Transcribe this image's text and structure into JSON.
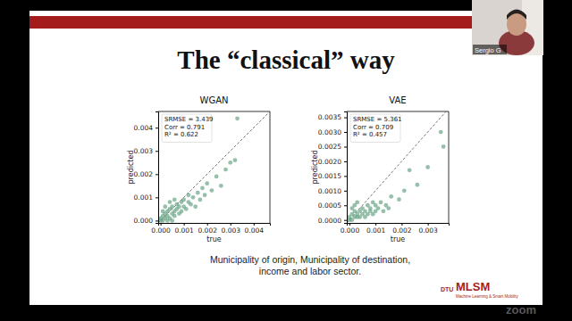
{
  "slide": {
    "title": "The “classical” way",
    "caption": [
      "Municipality of origin, Municipality of destination,",
      "income and labor sector."
    ],
    "logo": {
      "org": "DTU",
      "name": "MLSM",
      "tagline": "Machine Learning & Smart Mobility"
    },
    "participant": "Sergio G",
    "watermark": "zoom"
  },
  "chart_data": [
    {
      "type": "scatter",
      "title": "WGAN",
      "x_label": "true",
      "y_label": "predicted",
      "annotations": [
        "SRMSE = 3.439",
        "Corr = 0.791",
        "R² = 0.622"
      ],
      "color": "#5f9e7e",
      "marker": "o",
      "x": [
        0.0,
        0.0001,
        0.0001,
        0.0002,
        0.0002,
        0.0003,
        0.0003,
        0.0004,
        0.0004,
        0.0005,
        0.0005,
        0.0006,
        0.0006,
        0.0007,
        0.0007,
        0.0008,
        0.0008,
        0.0009,
        0.0009,
        0.001,
        0.001,
        0.0011,
        0.0012,
        0.0012,
        0.0013,
        0.0014,
        0.0015,
        0.0016,
        0.0017,
        0.0018,
        0.0019,
        0.002,
        0.0022,
        0.0024,
        0.0026,
        0.0028,
        0.003,
        0.0032,
        0.0033,
        0.0,
        0.0001,
        0.0002,
        0.0003,
        0.0005,
        0.0004,
        0.0006
      ],
      "values": [
        0.0001,
        0.0,
        0.0002,
        0.0001,
        0.0003,
        0.0002,
        0.0004,
        0.0001,
        0.0005,
        0.0003,
        0.0006,
        0.0002,
        0.0004,
        0.0005,
        0.0007,
        0.0003,
        0.0006,
        0.0004,
        0.0008,
        0.0006,
        0.0009,
        0.0005,
        0.0008,
        0.0011,
        0.0007,
        0.001,
        0.0006,
        0.0012,
        0.0009,
        0.0014,
        0.0011,
        0.0016,
        0.0013,
        0.0019,
        0.0015,
        0.0022,
        0.0025,
        0.0026,
        0.0044,
        0.0,
        0.0004,
        0.0006,
        0.0,
        0.0,
        0.0008,
        0.0009
      ],
      "xlim": [
        -0.0001,
        0.0047
      ],
      "ylim": [
        -0.0001,
        0.0047
      ],
      "xticks": [
        {
          "value": 0,
          "label": "0.000"
        },
        {
          "value": 0.001,
          "label": "0.001"
        },
        {
          "value": 0.002,
          "label": "0.002"
        },
        {
          "value": 0.003,
          "label": "0.003"
        },
        {
          "value": 0.004,
          "label": "0.004"
        }
      ],
      "yticks": [
        {
          "value": 0,
          "label": "0.000"
        },
        {
          "value": 0.001,
          "label": "0.001"
        },
        {
          "value": 0.002,
          "label": "0.002"
        },
        {
          "value": 0.003,
          "label": "0.003"
        },
        {
          "value": 0.004,
          "label": "0.004"
        }
      ]
    },
    {
      "type": "scatter",
      "title": "VAE",
      "x_label": "true",
      "y_label": "predicted",
      "annotations": [
        "SRMSE = 5.361",
        "Corr = 0.709",
        "R² = 0.457"
      ],
      "color": "#5f9e7e",
      "marker": "o",
      "x": [
        0.0,
        0.0,
        0.0001,
        0.0001,
        0.0002,
        0.0002,
        0.0003,
        0.0003,
        0.0004,
        0.0004,
        0.0005,
        0.0005,
        0.0006,
        0.0006,
        0.0007,
        0.0007,
        0.0008,
        0.0008,
        0.0009,
        0.0009,
        0.001,
        0.001,
        0.0011,
        0.0012,
        0.0013,
        0.0014,
        0.0015,
        0.0016,
        0.0019,
        0.0021,
        0.0023,
        0.0026,
        0.003,
        0.0035,
        0.0036,
        0.0002,
        0.0003,
        0.0001
      ],
      "values": [
        0.0,
        0.0001,
        0.0,
        0.0002,
        0.0001,
        0.0003,
        0.0001,
        0.0002,
        0.0003,
        0.0001,
        0.0002,
        0.0004,
        0.0001,
        0.0003,
        0.0002,
        0.0005,
        0.0003,
        0.0004,
        0.0002,
        0.0006,
        0.0003,
        0.0005,
        0.0004,
        0.0006,
        0.0003,
        0.0005,
        0.0004,
        0.0008,
        0.0007,
        0.001,
        0.0017,
        0.0012,
        0.0018,
        0.003,
        0.0025,
        0.0005,
        0.0006,
        0.0004
      ],
      "xlim": [
        -0.0001,
        0.0038
      ],
      "ylim": [
        -0.0001,
        0.0037
      ],
      "xticks": [
        {
          "value": 0,
          "label": "0.000"
        },
        {
          "value": 0.001,
          "label": "0.001"
        },
        {
          "value": 0.002,
          "label": "0.002"
        },
        {
          "value": 0.003,
          "label": "0.003"
        }
      ],
      "yticks": [
        {
          "value": 0,
          "label": "0.0000"
        },
        {
          "value": 0.0005,
          "label": "0.0005"
        },
        {
          "value": 0.001,
          "label": "0.0010"
        },
        {
          "value": 0.0015,
          "label": "0.0015"
        },
        {
          "value": 0.002,
          "label": "0.0020"
        },
        {
          "value": 0.0025,
          "label": "0.0025"
        },
        {
          "value": 0.003,
          "label": "0.0030"
        },
        {
          "value": 0.0035,
          "label": "0.0035"
        }
      ]
    }
  ]
}
